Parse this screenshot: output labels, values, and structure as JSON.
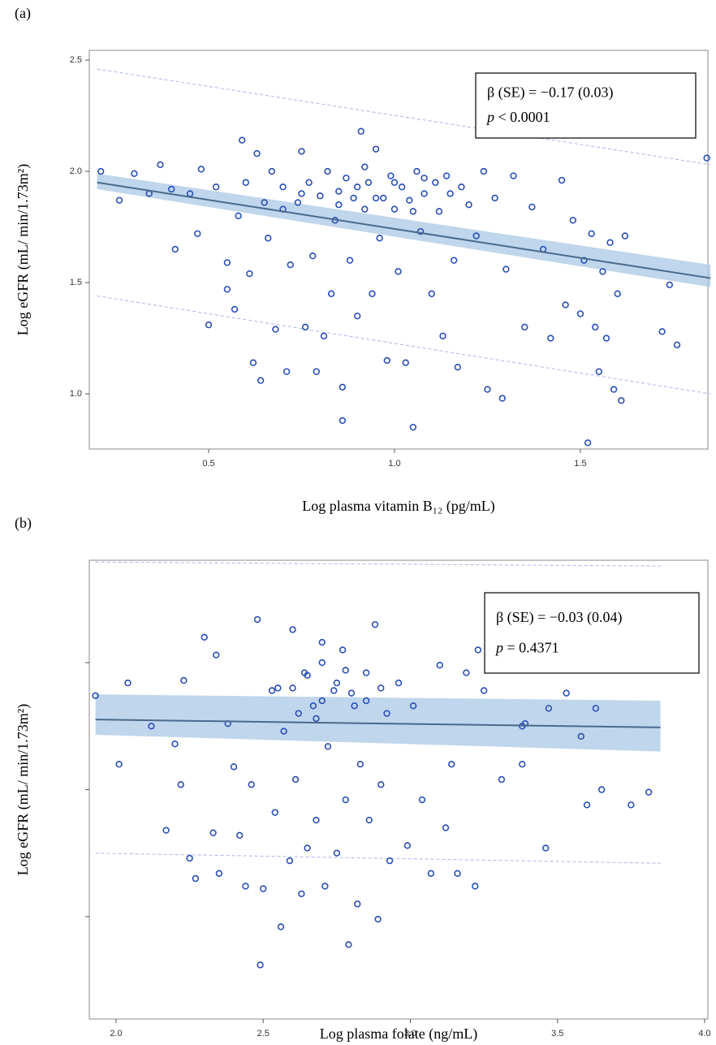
{
  "chart_data": [
    {
      "type": "scatter",
      "panel_label": "(a)",
      "xlabel": "Log plasma vitamin B₁₂ (pg/mL)",
      "ylabel": "Log eGFR (mL/ min/1.73m²)",
      "annotation": [
        "β (SE) = −0.17 (0.03)",
        "p < 0.0001"
      ],
      "color": "#2b4fb5",
      "fit_color": "#4a6a8c",
      "band_color": "#a9c8e6",
      "prediction_color": "#a8b4ee",
      "xlim": [
        0.179,
        1.843
      ],
      "ylim": [
        0.752,
        2.544
      ],
      "xticks": [
        0.5,
        {
          "value": 1,
          "label": "1.0"
        },
        1.5
      ],
      "yticks": [
        {
          "value": 1,
          "label": "1.0"
        },
        1.5,
        {
          "value": 2,
          "label": "2.0"
        },
        2.5
      ],
      "ytick_labels": true,
      "x": [
        0.21,
        0.26,
        0.3,
        0.34,
        0.37,
        0.4,
        0.41,
        0.45,
        0.47,
        0.48,
        0.5,
        0.52,
        0.55,
        0.55,
        0.57,
        0.58,
        0.59,
        0.6,
        0.61,
        0.62,
        0.63,
        0.64,
        0.65,
        0.66,
        0.67,
        0.68,
        0.7,
        0.71,
        0.72,
        0.74,
        0.75,
        0.76,
        0.77,
        0.78,
        0.79,
        0.8,
        0.81,
        0.82,
        0.83,
        0.84,
        0.85,
        0.86,
        0.86,
        0.87,
        0.88,
        0.89,
        0.9,
        0.91,
        0.92,
        0.93,
        0.94,
        0.95,
        0.96,
        0.97,
        0.98,
        0.99,
        1.0,
        1.01,
        1.02,
        1.03,
        1.04,
        1.05,
        1.06,
        1.07,
        1.08,
        1.1,
        1.11,
        1.12,
        1.13,
        1.14,
        1.16,
        1.17,
        1.18,
        1.2,
        1.22,
        1.24,
        1.25,
        1.27,
        1.29,
        1.3,
        1.32,
        1.35,
        1.37,
        1.4,
        1.42,
        1.45,
        1.46,
        1.48,
        1.5,
        1.51,
        1.52,
        1.53,
        1.54,
        1.55,
        1.56,
        1.57,
        1.58,
        1.59,
        1.6,
        1.61,
        1.62,
        1.72,
        1.74,
        1.76,
        1.84,
        0.9,
        0.95,
        1.0,
        0.85,
        0.75,
        1.05,
        1.15,
        0.7,
        0.92,
        1.08
      ],
      "y": [
        2.0,
        1.87,
        1.99,
        1.9,
        2.03,
        1.92,
        1.65,
        1.9,
        1.72,
        2.01,
        1.31,
        1.93,
        1.59,
        1.47,
        1.38,
        1.8,
        2.14,
        1.95,
        1.54,
        1.14,
        2.08,
        1.06,
        1.86,
        1.7,
        2.0,
        1.29,
        1.93,
        1.1,
        1.58,
        1.86,
        2.09,
        1.3,
        1.95,
        1.62,
        1.1,
        1.89,
        1.26,
        2.0,
        1.45,
        1.78,
        1.91,
        0.88,
        1.03,
        1.97,
        1.6,
        1.88,
        1.35,
        2.18,
        1.83,
        1.95,
        1.45,
        2.1,
        1.7,
        1.88,
        1.15,
        1.98,
        1.83,
        1.55,
        1.93,
        1.14,
        1.87,
        0.85,
        2.0,
        1.73,
        1.9,
        1.45,
        1.95,
        1.82,
        1.26,
        1.98,
        1.6,
        1.12,
        1.93,
        1.85,
        1.71,
        2.0,
        1.02,
        1.88,
        0.98,
        1.56,
        1.98,
        1.3,
        1.84,
        1.65,
        1.25,
        1.96,
        1.4,
        1.78,
        1.36,
        1.6,
        0.78,
        1.72,
        1.3,
        1.1,
        1.55,
        1.25,
        1.68,
        1.02,
        1.45,
        0.97,
        1.71,
        1.28,
        1.49,
        1.22,
        2.06,
        1.93,
        1.88,
        1.95,
        1.85,
        1.9,
        1.82,
        1.9,
        1.83,
        2.02,
        1.97
      ],
      "fit": {
        "x": [
          0.2,
          1.85
        ],
        "y": [
          1.95,
          1.52
        ],
        "ci_lower": [
          1.92,
          1.48
        ],
        "ci_upper": [
          1.99,
          1.58
        ],
        "prediction_lower": [
          1.44,
          1.0
        ],
        "prediction_upper": [
          2.46,
          2.03
        ]
      }
    },
    {
      "type": "scatter",
      "panel_label": "(b)",
      "xlabel": "Log plasma folate (ng/mL)",
      "ylabel": "Log eGFR (mL/ min/1.73m²)",
      "annotation": [
        "β (SE) = −0.03 (0.04)",
        "p = 0.4371"
      ],
      "color": "#2b4fb5",
      "fit_color": "#4a6a8c",
      "band_color": "#a9c8e6",
      "prediction_color": "#a8b4ee",
      "xlim": [
        1.909,
        4.011
      ],
      "ylim": [
        0.597,
        2.403
      ],
      "xticks": [
        {
          "value": 2,
          "label": "2.0"
        },
        2.5,
        {
          "value": 3,
          "label": "3.0"
        },
        3.5,
        {
          "value": 4,
          "label": "4.0"
        }
      ],
      "yticks": [
        1,
        1.5,
        2
      ],
      "ytick_labels": false,
      "x": [
        1.93,
        2.04,
        2.01,
        2.12,
        2.17,
        2.2,
        2.22,
        2.23,
        2.25,
        2.27,
        2.3,
        2.34,
        2.33,
        2.35,
        2.38,
        2.4,
        2.42,
        2.44,
        2.46,
        2.48,
        2.49,
        2.5,
        2.53,
        2.54,
        2.56,
        2.57,
        2.59,
        2.6,
        2.61,
        2.63,
        2.64,
        2.65,
        2.67,
        2.68,
        2.7,
        2.71,
        2.72,
        2.74,
        2.75,
        2.77,
        2.78,
        2.79,
        2.81,
        2.82,
        2.83,
        2.85,
        2.86,
        2.88,
        2.89,
        2.9,
        2.92,
        2.93,
        2.96,
        2.99,
        3.01,
        3.04,
        3.07,
        3.1,
        3.12,
        3.14,
        3.16,
        3.19,
        3.22,
        3.23,
        3.25,
        3.31,
        3.38,
        3.38,
        3.39,
        3.46,
        3.47,
        3.53,
        3.58,
        3.6,
        3.63,
        3.65,
        3.75,
        3.81,
        2.6,
        2.65,
        2.7,
        2.75,
        2.8,
        2.7,
        2.62,
        2.85,
        2.55,
        2.9,
        2.68,
        2.78
      ],
      "y": [
        1.87,
        1.92,
        1.6,
        1.75,
        1.34,
        1.68,
        1.52,
        1.93,
        1.23,
        1.15,
        2.1,
        2.03,
        1.33,
        1.17,
        1.76,
        1.59,
        1.32,
        1.12,
        1.52,
        2.17,
        0.81,
        1.11,
        1.89,
        1.41,
        0.96,
        1.73,
        1.22,
        2.13,
        1.54,
        1.09,
        1.96,
        1.27,
        1.83,
        1.38,
        2.08,
        1.12,
        1.67,
        1.89,
        1.25,
        2.05,
        1.46,
        0.89,
        1.83,
        1.05,
        1.6,
        1.96,
        1.38,
        2.15,
        0.99,
        1.52,
        1.8,
        1.22,
        1.92,
        1.28,
        1.83,
        1.46,
        1.17,
        1.99,
        1.35,
        1.6,
        1.17,
        1.96,
        1.12,
        2.05,
        1.89,
        1.54,
        1.6,
        1.75,
        1.76,
        1.27,
        1.82,
        1.88,
        1.71,
        1.44,
        1.82,
        1.5,
        1.44,
        1.49,
        1.9,
        1.95,
        1.85,
        1.92,
        1.88,
        2.0,
        1.8,
        1.85,
        1.9,
        1.9,
        1.78,
        1.97
      ],
      "fit": {
        "x": [
          1.93,
          3.85
        ],
        "y": [
          1.776,
          1.745
        ],
        "ci_lower": [
          1.716,
          1.65
        ],
        "ci_upper": [
          1.875,
          1.85
        ],
        "prediction_lower": [
          1.25,
          1.21
        ],
        "prediction_upper": [
          2.396,
          2.38
        ]
      }
    }
  ]
}
